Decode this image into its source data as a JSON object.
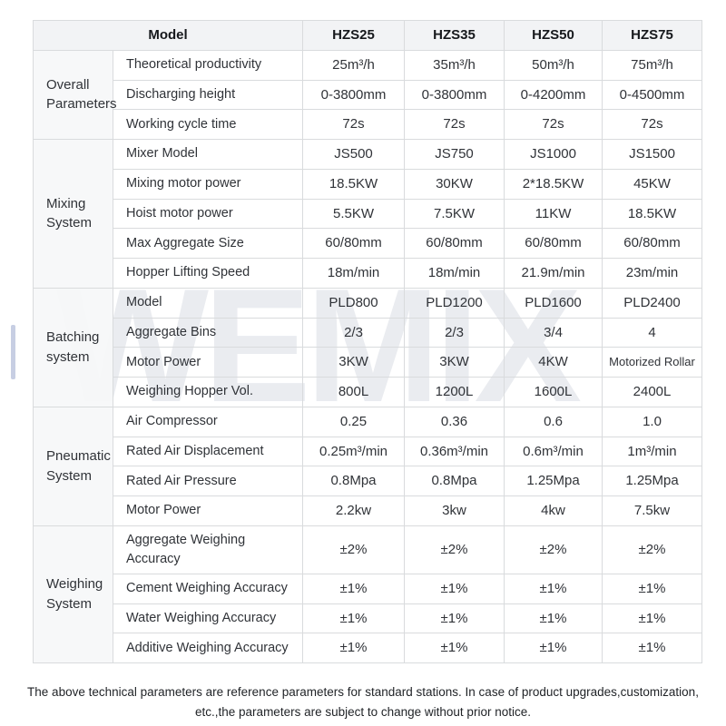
{
  "watermark": "WEMIX",
  "colors": {
    "border": "#d9dbdd",
    "header_background": "#f2f3f5",
    "section_label_background": "#f6f7f9",
    "watermark_color": "#eaecf0",
    "text": "#303338",
    "scrollbar_thumb": "#c7cee3"
  },
  "table": {
    "header": {
      "model_label": "Model",
      "columns": [
        "HZS25",
        "HZS35",
        "HZS50",
        "HZS75"
      ]
    },
    "sections": [
      {
        "label": "Overall Parameters",
        "rows": [
          {
            "param": "Theoretical productivity",
            "values": [
              "25m³/h",
              "35m³/h",
              "50m³/h",
              "75m³/h"
            ]
          },
          {
            "param": "Discharging height",
            "values": [
              "0-3800mm",
              "0-3800mm",
              "0-4200mm",
              "0-4500mm"
            ]
          },
          {
            "param": "Working cycle time",
            "values": [
              "72s",
              "72s",
              "72s",
              "72s"
            ]
          }
        ]
      },
      {
        "label": "Mixing System",
        "rows": [
          {
            "param": "Mixer Model",
            "values": [
              "JS500",
              "JS750",
              "JS1000",
              "JS1500"
            ]
          },
          {
            "param": "Mixing motor power",
            "values": [
              "18.5KW",
              "30KW",
              "2*18.5KW",
              "45KW"
            ]
          },
          {
            "param": "Hoist motor power",
            "values": [
              "5.5KW",
              "7.5KW",
              "11KW",
              "18.5KW"
            ]
          },
          {
            "param": "Max Aggregate Size",
            "values": [
              "60/80mm",
              "60/80mm",
              "60/80mm",
              "60/80mm"
            ]
          },
          {
            "param": "Hopper Lifting Speed",
            "values": [
              "18m/min",
              "18m/min",
              "21.9m/min",
              "23m/min"
            ]
          }
        ]
      },
      {
        "label": "Batching system",
        "rows": [
          {
            "param": "Model",
            "values": [
              "PLD800",
              "PLD1200",
              "PLD1600",
              "PLD2400"
            ]
          },
          {
            "param": "Aggregate Bins",
            "values": [
              "2/3",
              "2/3",
              "3/4",
              "4"
            ]
          },
          {
            "param": "Motor Power",
            "values": [
              "3KW",
              "3KW",
              "4KW",
              "Motorized Rollar"
            ]
          },
          {
            "param": "Weighing Hopper Vol.",
            "values": [
              "800L",
              "1200L",
              "1600L",
              "2400L"
            ]
          }
        ]
      },
      {
        "label": "Pneumatic System",
        "rows": [
          {
            "param": "Air Compressor",
            "values": [
              "0.25",
              "0.36",
              "0.6",
              "1.0"
            ]
          },
          {
            "param": "Rated Air Displacement",
            "values": [
              "0.25m³/min",
              "0.36m³/min",
              "0.6m³/min",
              "1m³/min"
            ]
          },
          {
            "param": "Rated Air Pressure",
            "values": [
              "0.8Mpa",
              "0.8Mpa",
              "1.25Mpa",
              "1.25Mpa"
            ]
          },
          {
            "param": "Motor Power",
            "values": [
              "2.2kw",
              "3kw",
              "4kw",
              "7.5kw"
            ]
          }
        ]
      },
      {
        "label": "Weighing System",
        "rows": [
          {
            "param": "Aggregate Weighing Accuracy",
            "values": [
              "±2%",
              "±2%",
              "±2%",
              "±2%"
            ]
          },
          {
            "param": "Cement Weighing Accuracy",
            "values": [
              "±1%",
              "±1%",
              "±1%",
              "±1%"
            ]
          },
          {
            "param": "Water Weighing Accuracy",
            "values": [
              "±1%",
              "±1%",
              "±1%",
              "±1%"
            ]
          },
          {
            "param": "Additive Weighing Accuracy",
            "values": [
              "±1%",
              "±1%",
              "±1%",
              "±1%"
            ]
          }
        ]
      }
    ]
  },
  "footer": {
    "line1": "The above technical parameters are reference parameters for standard stations. In case of product upgrades,customization,",
    "line2": "etc.,the parameters are subject to change without prior notice."
  }
}
